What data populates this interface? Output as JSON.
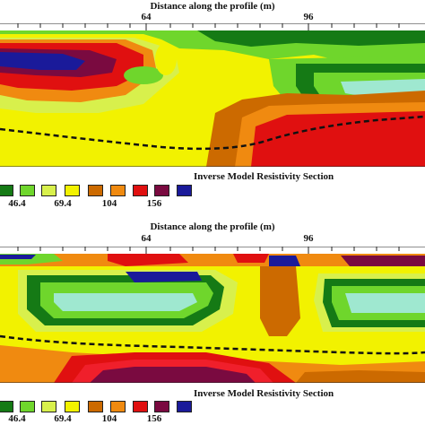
{
  "legend_colors": [
    "#157a15",
    "#6fd62c",
    "#d8f04c",
    "#f2f200",
    "#cc6a00",
    "#f08a10",
    "#e01010",
    "#f01f2b",
    "#7a0a40",
    "#1a1a9a"
  ],
  "chart_data": [
    {
      "type": "heatmap",
      "title": "Distance along the profile (m)",
      "xlabel": "Distance along the profile (m)",
      "x_ticks": [
        "64",
        "96"
      ],
      "section_label": "Inverse  Model Resistivity Section",
      "legend_labels": [
        "46.4",
        "69.4",
        "104",
        "156"
      ],
      "legend_values": [
        "46.4",
        "69.4",
        "104",
        "156"
      ]
    },
    {
      "type": "heatmap",
      "title": "Distance along the profile (m)",
      "xlabel": "Distance along the profile (m)",
      "x_ticks": [
        "64",
        "96"
      ],
      "section_label": "Inverse  Model Resistivity Section",
      "legend_labels": [
        "46.4",
        "69.4",
        "104",
        "156"
      ],
      "legend_values": [
        "46.4",
        "69.4",
        "104",
        "156"
      ]
    }
  ]
}
